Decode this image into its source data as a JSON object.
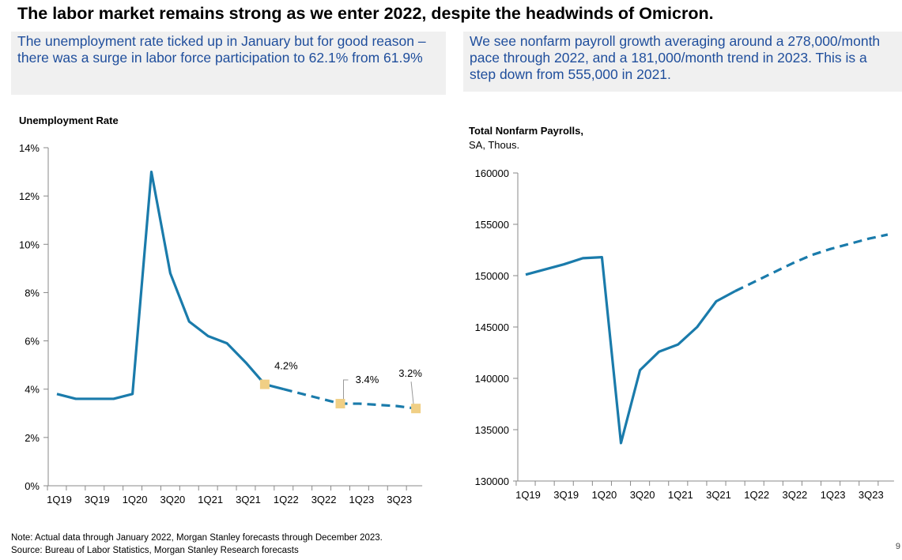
{
  "title": "The labor market remains strong as we enter 2022, despite the headwinds of Omicron.",
  "callouts": {
    "left": "The unemployment rate ticked up in January but for good reason – there was a surge in labor force participation to 62.1% from 61.9%",
    "right": "We see nonfarm payroll growth averaging around a 278,000/month pace through 2022, and a 181,000/month trend in 2023. This is a step down from 555,000 in 2021."
  },
  "footer": {
    "note": "Note: Actual data through January 2022, Morgan Stanley forecasts through December 2023.",
    "source": "Source: Bureau of Labor Statistics, Morgan Stanley Research forecasts",
    "page": "9"
  },
  "colors": {
    "line": "#1a7bab",
    "marker": "#f0cf85",
    "callout_text": "#1f4e9c",
    "callout_bg": "#f0f0f0"
  },
  "chart_data": [
    {
      "type": "line",
      "title": "Unemployment Rate",
      "x_ticks": [
        "1Q19",
        "3Q19",
        "1Q20",
        "3Q20",
        "1Q21",
        "3Q21",
        "1Q22",
        "3Q22",
        "1Q23",
        "3Q23"
      ],
      "y_ticks": [
        "0%",
        "2%",
        "4%",
        "6%",
        "8%",
        "10%",
        "12%",
        "14%"
      ],
      "ylim": [
        0,
        14
      ],
      "series": [
        {
          "style": "actual",
          "x": [
            "1Q19",
            "2Q19",
            "3Q19",
            "4Q19",
            "1Q20",
            "2Q20",
            "3Q20",
            "4Q20",
            "1Q21",
            "2Q21",
            "3Q21",
            "4Q21",
            "1Q22"
          ],
          "values": [
            3.8,
            3.6,
            3.6,
            3.6,
            3.8,
            13.0,
            8.8,
            6.8,
            6.2,
            5.9,
            5.1,
            4.2,
            4.0
          ]
        },
        {
          "style": "forecast",
          "x": [
            "1Q22",
            "2Q22",
            "3Q22",
            "4Q22",
            "1Q23",
            "2Q23",
            "3Q23",
            "4Q23"
          ],
          "values": [
            4.0,
            3.8,
            3.6,
            3.4,
            3.4,
            3.35,
            3.3,
            3.2
          ]
        }
      ],
      "annotations": [
        {
          "x": "4Q21",
          "y": 4.2,
          "label": "4.2%"
        },
        {
          "x": "4Q22",
          "y": 3.4,
          "label": "3.4%"
        },
        {
          "x": "4Q23",
          "y": 3.2,
          "label": "3.2%"
        }
      ],
      "grid": false,
      "legend": "none"
    },
    {
      "type": "line",
      "title": "Total Nonfarm Payrolls,",
      "subtitle": "SA, Thous.",
      "x_ticks": [
        "1Q19",
        "3Q19",
        "1Q20",
        "3Q20",
        "1Q21",
        "3Q21",
        "1Q22",
        "3Q22",
        "1Q23",
        "3Q23"
      ],
      "y_ticks": [
        "130000",
        "135000",
        "140000",
        "145000",
        "150000",
        "155000",
        "160000"
      ],
      "ylim": [
        130000,
        160000
      ],
      "series": [
        {
          "style": "actual",
          "x": [
            "1Q19",
            "2Q19",
            "3Q19",
            "4Q19",
            "1Q20",
            "2Q20",
            "3Q20",
            "4Q20",
            "1Q21",
            "2Q21",
            "3Q21",
            "4Q21"
          ],
          "values": [
            150100,
            150600,
            151100,
            151700,
            151800,
            133700,
            140800,
            142600,
            143300,
            145000,
            147500,
            148500
          ]
        },
        {
          "style": "forecast",
          "x": [
            "4Q21",
            "1Q22",
            "2Q22",
            "3Q22",
            "4Q22",
            "1Q23",
            "2Q23",
            "3Q23",
            "4Q23"
          ],
          "values": [
            148500,
            149400,
            150300,
            151200,
            152000,
            152600,
            153100,
            153600,
            154000
          ]
        }
      ],
      "grid": false,
      "legend": "none"
    }
  ]
}
